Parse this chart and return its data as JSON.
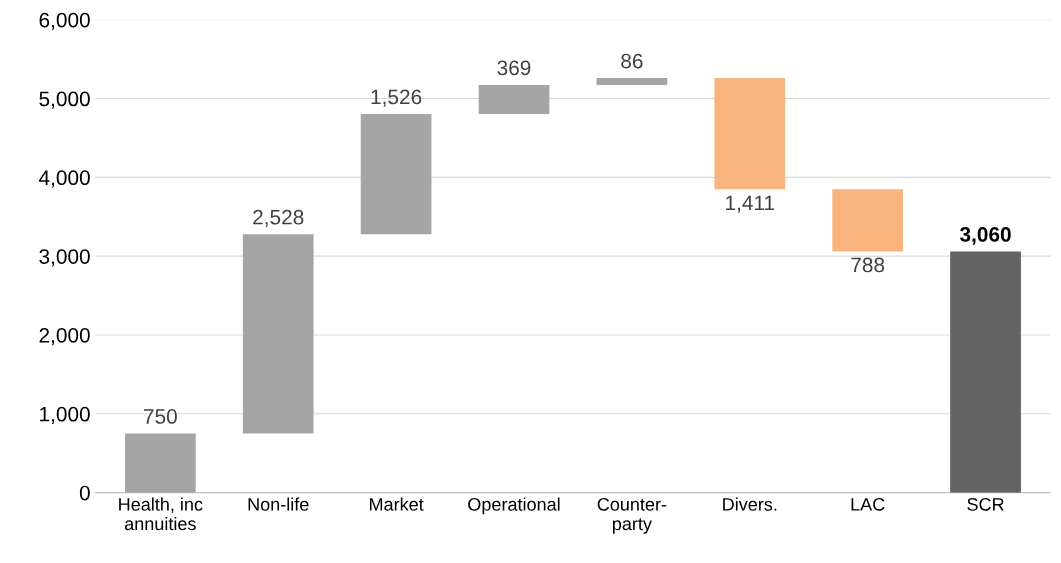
{
  "chart_data": {
    "type": "bar",
    "categories": [
      "Health, inc\nannuities",
      "Non-life",
      "Market",
      "Operational",
      "Counter-\nparty",
      "Divers.",
      "LAC",
      "SCR"
    ],
    "values": [
      750,
      2528,
      1526,
      369,
      86,
      -1411,
      -788,
      3060
    ],
    "base": [
      0,
      750,
      3278,
      4804,
      5173,
      5259,
      3848,
      0
    ],
    "value_labels": [
      "750",
      "2,528",
      "1,526",
      "369",
      "86",
      "1,411",
      "788",
      "3,060"
    ],
    "colors": [
      "#a5a5a5",
      "#a5a5a5",
      "#a5a5a5",
      "#a5a5a5",
      "#a5a5a5",
      "#f8b47c",
      "#f8b47c",
      "#636363"
    ],
    "ylim": [
      0,
      6000
    ],
    "yticks": [
      {
        "value": 0,
        "label": "0"
      },
      {
        "value": 1000,
        "label": "1,000"
      },
      {
        "value": 2000,
        "label": "2,000"
      },
      {
        "value": 3000,
        "label": "3,000"
      },
      {
        "value": 4000,
        "label": "4,000"
      },
      {
        "value": 5000,
        "label": "5,000"
      },
      {
        "value": 6000,
        "label": "6,000"
      }
    ],
    "grid": "y"
  }
}
